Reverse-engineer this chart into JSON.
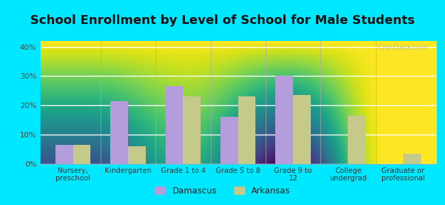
{
  "title": "School Enrollment by Level of School for Male Students",
  "categories": [
    "Nursery,\npreschool",
    "Kindergarten",
    "Grade 1 to 4",
    "Grade 5 to 8",
    "Grade 9 to\n12",
    "College\nundergrad",
    "Graduate or\nprofessional"
  ],
  "damascus": [
    6.5,
    21.5,
    26.5,
    16.0,
    30.0,
    0.0,
    0.0
  ],
  "arkansas": [
    6.5,
    6.0,
    23.0,
    23.0,
    23.5,
    16.5,
    3.5
  ],
  "damascus_color": "#b39ddb",
  "arkansas_color": "#c5c98a",
  "bg_color": "#00e8ff",
  "ylabel_ticks": [
    "0%",
    "10%",
    "20%",
    "30%",
    "40%"
  ],
  "ytick_vals": [
    0,
    10,
    20,
    30,
    40
  ],
  "ylim": [
    0,
    42
  ],
  "title_fontsize": 13,
  "legend_labels": [
    "Damascus",
    "Arkansas"
  ],
  "watermark": "City-Data.com"
}
